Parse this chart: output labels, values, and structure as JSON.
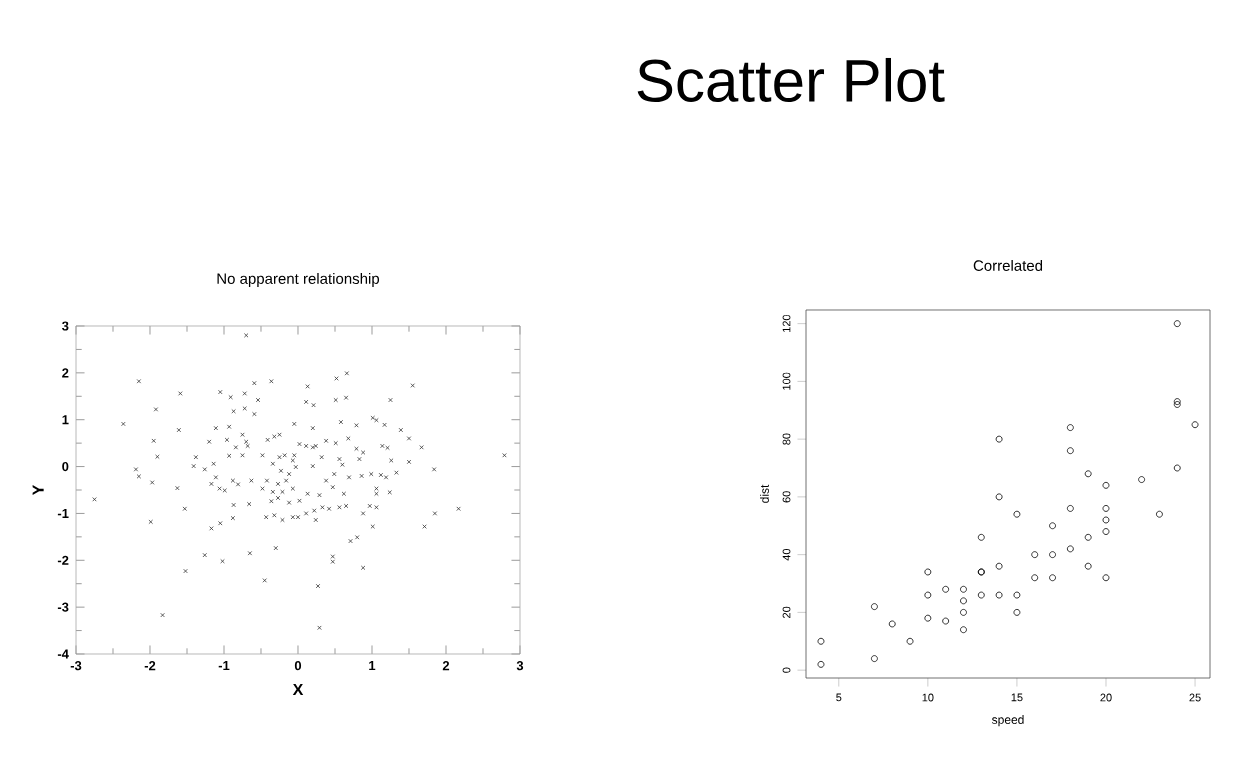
{
  "chart_data": [
    {
      "type": "other",
      "title": "Scatter Plot"
    },
    {
      "type": "scatter",
      "title": "No apparent relationship",
      "xlabel": "X",
      "ylabel": "Y",
      "xlim": [
        -3,
        3
      ],
      "ylim": [
        -4,
        3
      ],
      "xticks": [
        -3,
        -2,
        -1,
        0,
        1,
        2,
        3
      ],
      "yticks": [
        -4,
        -3,
        -2,
        -1,
        0,
        1,
        2,
        3
      ],
      "marker": "cross",
      "series": [
        {
          "color": "#333333",
          "x": [
            -0.7,
            -2.15,
            -1.59,
            -1.92,
            -2.36,
            -1.95,
            -1.9,
            -2.19,
            -2.15,
            -1.97,
            -2.75,
            -1.99,
            -1.63,
            -1.53,
            -1.61,
            -1.83,
            -1.52,
            -1.26,
            -1.02,
            -1.17,
            -1.05,
            -0.88,
            -0.65,
            -0.45,
            -0.3,
            0.27,
            0.29,
            0.47,
            0.47,
            0.88,
            0.71,
            0.8,
            1.01,
            1.71,
            1.85,
            2.17,
            1.84,
            2.79,
            1.55,
            1.25,
            0.66,
            0.52,
            0.13,
            0.11,
            0.21,
            0.51,
            0.65,
            -0.36,
            -0.59,
            -1.05,
            -0.91,
            -0.72,
            -0.54,
            -0.59,
            -0.72,
            -0.87,
            -1.11,
            -0.93,
            -0.75,
            -0.7,
            -1.2,
            -0.96,
            -0.84,
            -0.93,
            -0.75,
            -0.68,
            -1.38,
            -1.41,
            -1.26,
            -1.14,
            -1.11,
            -1.17,
            -1.06,
            -0.99,
            -0.88,
            -0.81,
            -0.87,
            -0.63,
            -0.66,
            -0.48,
            -0.42,
            -0.43,
            -0.32,
            -0.36,
            -0.27,
            -0.21,
            -0.07,
            0.0,
            -0.12,
            0.02,
            0.13,
            0.22,
            0.24,
            0.33,
            0.42,
            0.29,
            0.56,
            0.65,
            0.62,
            0.47,
            0.38,
            0.49,
            0.69,
            0.86,
            0.99,
            1.06,
            1.06,
            1.06,
            0.88,
            0.97,
            1.24,
            1.19,
            1.12,
            1.33,
            1.26,
            1.14,
            1.21,
            1.5,
            1.5,
            1.39,
            1.67,
            1.01,
            1.06,
            1.17,
            0.79,
            0.58,
            0.68,
            0.51,
            0.38,
            0.24,
            0.32,
            0.56,
            0.6,
            0.79,
            0.88,
            0.83,
            0.2,
            -0.05,
            0.02,
            0.11,
            0.2,
            -0.05,
            -0.25,
            -0.18,
            -0.32,
            -0.25,
            -0.41,
            -0.48,
            -0.34,
            -0.23,
            -0.12,
            -0.03,
            0.2,
            -0.07,
            -0.16,
            -0.27,
            -0.07,
            -0.21,
            -0.34,
            0.11
          ],
          "values": [
            2.8,
            1.82,
            1.56,
            1.22,
            0.91,
            0.55,
            0.21,
            -0.06,
            -0.21,
            -0.34,
            -0.7,
            -1.18,
            -0.46,
            -0.9,
            0.78,
            -3.17,
            -2.23,
            -1.89,
            -2.02,
            -1.32,
            -1.21,
            -1.1,
            -1.85,
            -2.43,
            -1.74,
            -2.55,
            -3.44,
            -1.92,
            -2.03,
            -2.16,
            -1.59,
            -1.51,
            -1.28,
            -1.28,
            -1.0,
            -0.9,
            -0.06,
            0.24,
            1.73,
            1.42,
            1.99,
            1.88,
            1.71,
            1.38,
            1.31,
            1.42,
            1.47,
            1.82,
            1.78,
            1.59,
            1.48,
            1.56,
            1.42,
            1.12,
            1.24,
            1.18,
            0.82,
            0.85,
            0.68,
            0.53,
            0.53,
            0.57,
            0.41,
            0.23,
            0.24,
            0.44,
            0.2,
            0.01,
            -0.06,
            0.06,
            -0.23,
            -0.37,
            -0.47,
            -0.51,
            -0.3,
            -0.38,
            -0.82,
            -0.3,
            -0.8,
            -0.47,
            -0.3,
            -1.08,
            -1.04,
            -0.74,
            -0.67,
            -1.14,
            -1.08,
            -1.08,
            -0.77,
            -0.73,
            -0.58,
            -0.94,
            -1.14,
            -0.87,
            -0.9,
            -0.61,
            -0.87,
            -0.84,
            -0.58,
            -0.44,
            -0.3,
            -0.16,
            -0.23,
            -0.2,
            -0.16,
            -0.47,
            -0.58,
            -0.87,
            -1.0,
            -0.84,
            -0.55,
            -0.23,
            -0.18,
            -0.13,
            0.13,
            0.44,
            0.4,
            0.1,
            0.6,
            0.78,
            0.41,
            1.04,
            0.99,
            0.89,
            0.88,
            0.95,
            0.6,
            0.5,
            0.55,
            0.44,
            0.2,
            0.16,
            0.04,
            0.38,
            0.3,
            0.16,
            0.82,
            0.91,
            0.48,
            0.44,
            0.41,
            0.24,
            0.2,
            0.24,
            0.64,
            0.68,
            0.57,
            0.24,
            0.06,
            -0.09,
            -0.16,
            -0.01,
            0.01,
            0.13,
            -0.3,
            -0.37,
            -0.47,
            -0.54,
            -0.54,
            -1.0
          ]
        }
      ]
    },
    {
      "type": "scatter",
      "title": "Correlated",
      "xlabel": "speed",
      "ylabel": "dist",
      "xlim": [
        3.16,
        25.84
      ],
      "ylim": [
        -2.72,
        124.72
      ],
      "xticks": [
        5,
        10,
        15,
        20,
        25
      ],
      "yticks": [
        0,
        20,
        40,
        60,
        80,
        100,
        120
      ],
      "marker": "circle",
      "series": [
        {
          "color": "#000000",
          "x": [
            4,
            4,
            7,
            7,
            8,
            9,
            10,
            10,
            10,
            11,
            11,
            12,
            12,
            12,
            12,
            13,
            13,
            13,
            13,
            14,
            14,
            14,
            14,
            15,
            15,
            15,
            16,
            16,
            17,
            17,
            17,
            18,
            18,
            18,
            18,
            19,
            19,
            19,
            20,
            20,
            20,
            20,
            20,
            22,
            23,
            24,
            24,
            24,
            24,
            25
          ],
          "values": [
            2,
            10,
            4,
            22,
            16,
            10,
            18,
            26,
            34,
            17,
            28,
            14,
            20,
            24,
            28,
            26,
            34,
            34,
            46,
            26,
            36,
            60,
            80,
            20,
            26,
            54,
            32,
            40,
            32,
            40,
            50,
            42,
            56,
            76,
            84,
            36,
            46,
            68,
            32,
            48,
            52,
            56,
            64,
            66,
            54,
            70,
            92,
            93,
            120,
            85
          ]
        }
      ]
    }
  ]
}
